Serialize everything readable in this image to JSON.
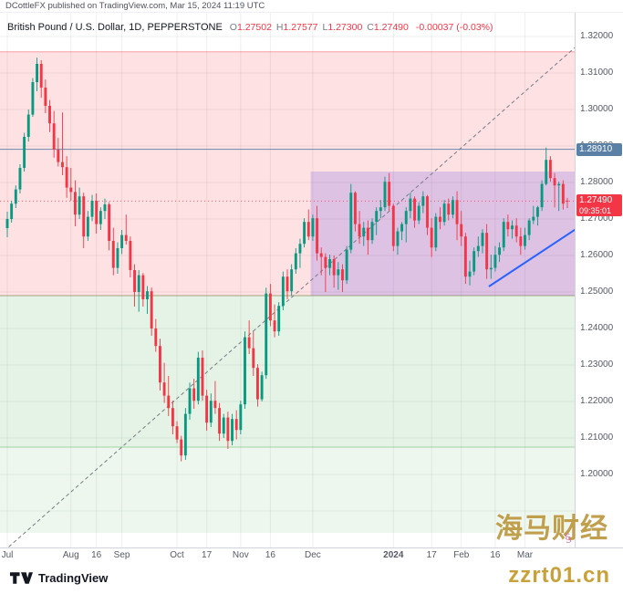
{
  "publish_bar": {
    "text": "DCottleFX published on TradingView.com, Mar 15, 2024 11:19 UTC"
  },
  "symbol_header": {
    "title": "British Pound / U.S. Dollar, 1D, PEPPERSTONE",
    "o_label": "O",
    "open": "1.27502",
    "h_label": "H",
    "high": "1.27577",
    "l_label": "L",
    "low": "1.27300",
    "c_label": "C",
    "close": "1.27490",
    "change": "-0.00037 (-0.03%)"
  },
  "price_axis": {
    "ticks": [
      1.32,
      1.31,
      1.3,
      1.29,
      1.28,
      1.27,
      1.26,
      1.25,
      1.24,
      1.23,
      1.22,
      1.21,
      1.2
    ]
  },
  "time_axis": {
    "labels": [
      {
        "t": "Jul",
        "i": 0
      },
      {
        "t": "Aug",
        "i": 15
      },
      {
        "t": "16",
        "i": 21
      },
      {
        "t": "Sep",
        "i": 27
      },
      {
        "t": "Oct",
        "i": 40
      },
      {
        "t": "17",
        "i": 47
      },
      {
        "t": "Nov",
        "i": 55
      },
      {
        "t": "16",
        "i": 62
      },
      {
        "t": "Dec",
        "i": 72
      },
      {
        "t": "2024",
        "i": 91,
        "bold": true
      },
      {
        "t": "17",
        "i": 100
      },
      {
        "t": "Feb",
        "i": 107
      },
      {
        "t": "16",
        "i": 115
      },
      {
        "t": "Mar",
        "i": 122
      }
    ]
  },
  "footer": {
    "logo_text": "TradingView"
  },
  "watermark": {
    "line1": "海马财经",
    "line2": "zzrt01.cn",
    "signature": "§"
  },
  "chart_data": {
    "type": "candlestick",
    "title": "British Pound / U.S. Dollar, 1D, PEPPERSTONE",
    "symbol": "GBPUSD",
    "interval": "1D",
    "exchange": "PEPPERSTONE",
    "last": {
      "open": 1.27502,
      "high": 1.27577,
      "low": 1.273,
      "close": 1.2749,
      "change": -0.00037,
      "change_pct": -0.03
    },
    "ylim": [
      1.179,
      1.3215
    ],
    "up_color": "#089981",
    "down_color": "#f23645",
    "grid": {
      "h_min": 1.19,
      "h_max": 1.32,
      "h_step": 0.01,
      "color": "rgba(42,46,57,0.08)"
    },
    "zones": [
      {
        "name": "supply-zone",
        "top": 1.3158,
        "bottom": 1.249,
        "fill": "rgba(242,54,69,0.15)",
        "border": "rgba(242,54,69,0.45)"
      },
      {
        "name": "demand-zone",
        "top": 1.249,
        "bottom": 1.2075,
        "fill": "rgba(76,175,80,0.15)",
        "border": "rgba(76,175,80,0.45)"
      },
      {
        "name": "demand-zone-lower",
        "top": 1.2075,
        "bottom": 1.184,
        "fill": "rgba(76,175,80,0.10)",
        "border": ""
      }
    ],
    "box": {
      "name": "consolidation-box",
      "from_index": 71.5,
      "to_index": 140,
      "top": 1.283,
      "bottom": 1.249,
      "fill": "rgba(98,70,234,0.20)"
    },
    "hlines": [
      {
        "name": "alert-level",
        "price": 1.2891,
        "color": "#5b80a5",
        "width": 1,
        "dash": "",
        "opacity": 0.9,
        "label": "1.28910"
      },
      {
        "name": "last-price",
        "price": 1.2749,
        "color": "#f23645",
        "width": 1,
        "dash": "1 3",
        "opacity": 0.8,
        "label": "1.27490",
        "countdown": "09:35:01"
      }
    ],
    "trendlines": [
      {
        "name": "uptrend-dashed",
        "i1": -0.8,
        "p1": 1.179,
        "i2": 133.8,
        "p2": 1.317,
        "color": "#787b86",
        "width": 1,
        "dash": "4 3"
      },
      {
        "name": "minor-uptrend-blue",
        "i1": 113.5,
        "p1": 1.2515,
        "i2": 135,
        "p2": 1.268,
        "color": "#2962ff",
        "width": 2,
        "dash": ""
      }
    ],
    "candles": [
      [
        1.2675,
        1.272,
        1.265,
        1.27
      ],
      [
        1.27,
        1.275,
        1.269,
        1.2742
      ],
      [
        1.2742,
        1.2792,
        1.273,
        1.2781
      ],
      [
        1.2781,
        1.285,
        1.277,
        1.284
      ],
      [
        1.284,
        1.2936,
        1.283,
        1.2925
      ],
      [
        1.2925,
        1.3,
        1.2912,
        1.2986
      ],
      [
        1.2986,
        1.3086,
        1.298,
        1.3075
      ],
      [
        1.3075,
        1.3142,
        1.305,
        1.3125
      ],
      [
        1.3125,
        1.3135,
        1.3032,
        1.306
      ],
      [
        1.306,
        1.3082,
        1.299,
        1.301
      ],
      [
        1.301,
        1.3026,
        1.2938,
        1.2962
      ],
      [
        1.2962,
        1.2996,
        1.2868,
        1.289
      ],
      [
        1.289,
        1.2922,
        1.2844,
        1.2856
      ],
      [
        1.2856,
        1.2992,
        1.282,
        1.2842
      ],
      [
        1.2842,
        1.2872,
        1.2758,
        1.2786
      ],
      [
        1.2786,
        1.284,
        1.275,
        1.2774
      ],
      [
        1.2774,
        1.2806,
        1.268,
        1.2712
      ],
      [
        1.2712,
        1.2786,
        1.27,
        1.2762
      ],
      [
        1.2762,
        1.2772,
        1.262,
        1.2652
      ],
      [
        1.2652,
        1.2722,
        1.264,
        1.2706
      ],
      [
        1.2706,
        1.2766,
        1.2694,
        1.275
      ],
      [
        1.275,
        1.277,
        1.266,
        1.2686
      ],
      [
        1.2686,
        1.2732,
        1.267,
        1.2722
      ],
      [
        1.2722,
        1.2756,
        1.27,
        1.274
      ],
      [
        1.274,
        1.2746,
        1.2614,
        1.264
      ],
      [
        1.264,
        1.2676,
        1.2546,
        1.2566
      ],
      [
        1.2566,
        1.2636,
        1.255,
        1.262
      ],
      [
        1.262,
        1.267,
        1.2604,
        1.2656
      ],
      [
        1.2656,
        1.2712,
        1.263,
        1.264
      ],
      [
        1.264,
        1.2652,
        1.254,
        1.256
      ],
      [
        1.256,
        1.2576,
        1.246,
        1.25
      ],
      [
        1.25,
        1.256,
        1.2446,
        1.2546
      ],
      [
        1.2546,
        1.2552,
        1.246,
        1.248
      ],
      [
        1.248,
        1.2516,
        1.244,
        1.2502
      ],
      [
        1.2502,
        1.2512,
        1.238,
        1.24
      ],
      [
        1.24,
        1.2426,
        1.2336,
        1.2352
      ],
      [
        1.2352,
        1.2372,
        1.223,
        1.2252
      ],
      [
        1.2252,
        1.2306,
        1.2196,
        1.2216
      ],
      [
        1.2216,
        1.227,
        1.216,
        1.2182
      ],
      [
        1.2182,
        1.2202,
        1.211,
        1.2132
      ],
      [
        1.2132,
        1.2146,
        1.2086,
        1.2096
      ],
      [
        1.2096,
        1.2106,
        1.2036,
        1.2052
      ],
      [
        1.2052,
        1.2182,
        1.204,
        1.2166
      ],
      [
        1.2166,
        1.2252,
        1.215,
        1.2236
      ],
      [
        1.2236,
        1.2262,
        1.218,
        1.2202
      ],
      [
        1.2202,
        1.2336,
        1.2192,
        1.232
      ],
      [
        1.232,
        1.234,
        1.2202,
        1.2216
      ],
      [
        1.2216,
        1.2232,
        1.212,
        1.2142
      ],
      [
        1.2142,
        1.2222,
        1.213,
        1.2202
      ],
      [
        1.2202,
        1.2256,
        1.2166,
        1.2182
      ],
      [
        1.2182,
        1.2196,
        1.2092,
        1.2112
      ],
      [
        1.2112,
        1.2166,
        1.21,
        1.2156
      ],
      [
        1.2156,
        1.2172,
        1.207,
        1.2092
      ],
      [
        1.2092,
        1.2166,
        1.208,
        1.2152
      ],
      [
        1.2152,
        1.2176,
        1.2096,
        1.2122
      ],
      [
        1.2122,
        1.2202,
        1.211,
        1.2192
      ],
      [
        1.2192,
        1.2392,
        1.218,
        1.2376
      ],
      [
        1.2376,
        1.2422,
        1.233,
        1.2346
      ],
      [
        1.2346,
        1.2392,
        1.227,
        1.2292
      ],
      [
        1.2292,
        1.2302,
        1.2186,
        1.2206
      ],
      [
        1.2206,
        1.2282,
        1.22,
        1.2272
      ],
      [
        1.2272,
        1.2512,
        1.2262,
        1.2496
      ],
      [
        1.2496,
        1.2522,
        1.2406,
        1.2422
      ],
      [
        1.2422,
        1.2466,
        1.2376,
        1.2392
      ],
      [
        1.2392,
        1.2472,
        1.238,
        1.2462
      ],
      [
        1.2462,
        1.2556,
        1.245,
        1.2542
      ],
      [
        1.2542,
        1.2562,
        1.248,
        1.2502
      ],
      [
        1.2502,
        1.2576,
        1.249,
        1.2562
      ],
      [
        1.2562,
        1.262,
        1.255,
        1.2606
      ],
      [
        1.2606,
        1.2646,
        1.2566,
        1.2632
      ],
      [
        1.2632,
        1.2702,
        1.2622,
        1.2692
      ],
      [
        1.2692,
        1.2726,
        1.2642,
        1.2652
      ],
      [
        1.2652,
        1.2712,
        1.264,
        1.2702
      ],
      [
        1.2702,
        1.2736,
        1.2586,
        1.2606
      ],
      [
        1.2606,
        1.2622,
        1.2546,
        1.2596
      ],
      [
        1.2596,
        1.2606,
        1.25,
        1.2566
      ],
      [
        1.2566,
        1.2602,
        1.2546,
        1.259
      ],
      [
        1.259,
        1.26,
        1.2512,
        1.2546
      ],
      [
        1.2546,
        1.2582,
        1.2506,
        1.2562
      ],
      [
        1.2562,
        1.2576,
        1.25,
        1.2532
      ],
      [
        1.2532,
        1.2626,
        1.2522,
        1.2616
      ],
      [
        1.2616,
        1.2796,
        1.2606,
        1.2772
      ],
      [
        1.2772,
        1.2776,
        1.2666,
        1.2686
      ],
      [
        1.2686,
        1.2722,
        1.2632,
        1.2652
      ],
      [
        1.2652,
        1.2692,
        1.2626,
        1.2676
      ],
      [
        1.2676,
        1.2696,
        1.2602,
        1.2642
      ],
      [
        1.2642,
        1.2702,
        1.2632,
        1.2692
      ],
      [
        1.2692,
        1.2732,
        1.2656,
        1.2722
      ],
      [
        1.2722,
        1.2752,
        1.2702,
        1.2732
      ],
      [
        1.2732,
        1.2816,
        1.2722,
        1.2802
      ],
      [
        1.2802,
        1.2826,
        1.2722,
        1.2736
      ],
      [
        1.2736,
        1.2742,
        1.2612,
        1.2626
      ],
      [
        1.2626,
        1.2676,
        1.2602,
        1.2666
      ],
      [
        1.2666,
        1.2692,
        1.2642,
        1.2686
      ],
      [
        1.2686,
        1.2732,
        1.2636,
        1.2722
      ],
      [
        1.2722,
        1.2772,
        1.2702,
        1.2756
      ],
      [
        1.2756,
        1.2762,
        1.2676,
        1.2696
      ],
      [
        1.2696,
        1.2746,
        1.2686,
        1.2736
      ],
      [
        1.2736,
        1.2776,
        1.2716,
        1.2762
      ],
      [
        1.2762,
        1.2766,
        1.2656,
        1.2676
      ],
      [
        1.2676,
        1.2702,
        1.2596,
        1.2622
      ],
      [
        1.2622,
        1.2716,
        1.2612,
        1.2706
      ],
      [
        1.2706,
        1.2732,
        1.2672,
        1.2692
      ],
      [
        1.2692,
        1.2752,
        1.2682,
        1.2742
      ],
      [
        1.2742,
        1.2756,
        1.2696,
        1.2712
      ],
      [
        1.2712,
        1.2762,
        1.2702,
        1.2752
      ],
      [
        1.2752,
        1.2776,
        1.2642,
        1.2686
      ],
      [
        1.2686,
        1.2722,
        1.2626,
        1.2652
      ],
      [
        1.2652,
        1.2662,
        1.2522,
        1.2542
      ],
      [
        1.2542,
        1.2586,
        1.2518,
        1.2556
      ],
      [
        1.2556,
        1.2622,
        1.2546,
        1.2612
      ],
      [
        1.2612,
        1.2652,
        1.2596,
        1.2626
      ],
      [
        1.2626,
        1.2672,
        1.2606,
        1.2662
      ],
      [
        1.2662,
        1.2686,
        1.2536,
        1.2562
      ],
      [
        1.2562,
        1.2602,
        1.2536,
        1.2566
      ],
      [
        1.2566,
        1.2626,
        1.2556,
        1.2602
      ],
      [
        1.2602,
        1.2636,
        1.2582,
        1.2622
      ],
      [
        1.2622,
        1.2702,
        1.2612,
        1.2692
      ],
      [
        1.2692,
        1.2712,
        1.2652,
        1.2672
      ],
      [
        1.2672,
        1.2696,
        1.2646,
        1.2682
      ],
      [
        1.2682,
        1.2702,
        1.2636,
        1.2652
      ],
      [
        1.2652,
        1.2676,
        1.2602,
        1.2626
      ],
      [
        1.2626,
        1.2676,
        1.2616,
        1.2656
      ],
      [
        1.2656,
        1.2702,
        1.2642,
        1.2696
      ],
      [
        1.2696,
        1.2736,
        1.2686,
        1.2706
      ],
      [
        1.2706,
        1.2736,
        1.2682,
        1.2732
      ],
      [
        1.2732,
        1.2806,
        1.2722,
        1.2796
      ],
      [
        1.2796,
        1.2896,
        1.2792,
        1.2862
      ],
      [
        1.2862,
        1.2872,
        1.2802,
        1.2812
      ],
      [
        1.2812,
        1.2826,
        1.2732,
        1.2792
      ],
      [
        1.2792,
        1.2802,
        1.2722,
        1.2796
      ],
      [
        1.2796,
        1.2806,
        1.2726,
        1.2742
      ],
      [
        1.27502,
        1.27577,
        1.273,
        1.2749
      ]
    ]
  }
}
